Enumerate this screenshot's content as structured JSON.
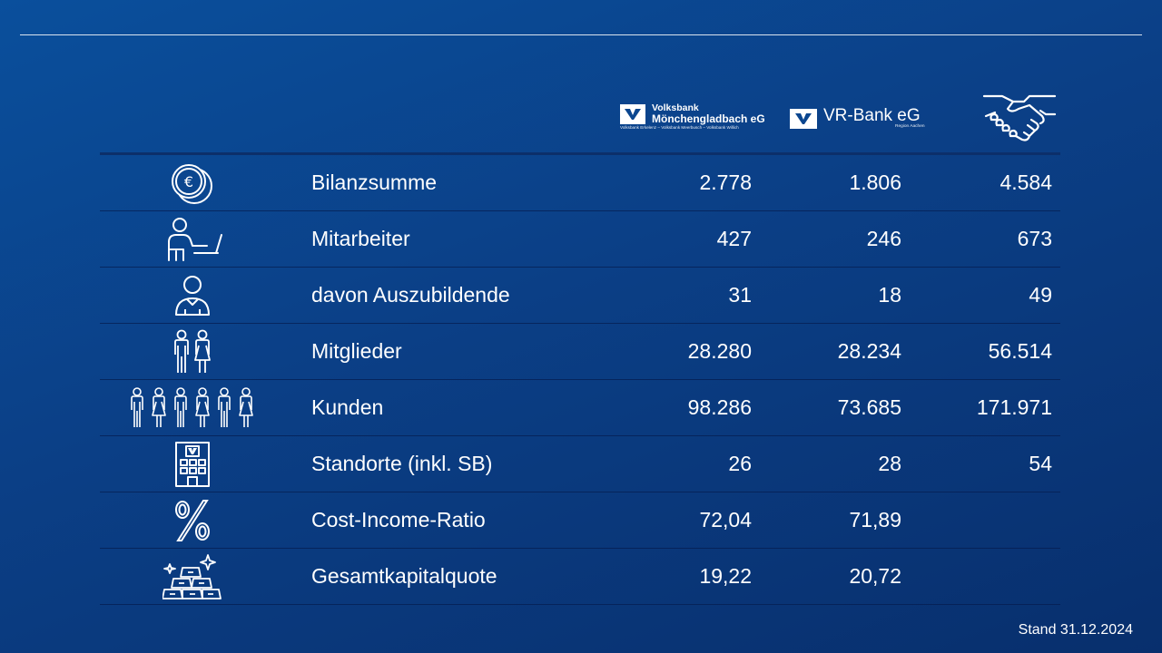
{
  "footer": {
    "stand": "Stand 31.12.2024"
  },
  "logos": {
    "volksbank": {
      "line1": "Volksbank",
      "line2": "Mönchengladbach eG",
      "line3": "Volksbank Erkelenz – Volksbank Meerbusch – Volksbank Willich"
    },
    "vrbank": {
      "name": "VR-Bank eG",
      "sub": "Region Aachen"
    },
    "combined": {
      "icon": "handshake-icon"
    }
  },
  "rows": [
    {
      "icon": "euro-coins-icon",
      "label": "Bilanzsumme",
      "v1": "2.778",
      "v2": "1.806",
      "v3": "4.584"
    },
    {
      "icon": "employee-laptop-icon",
      "label": "Mitarbeiter",
      "v1": "427",
      "v2": "246",
      "v3": "673"
    },
    {
      "icon": "trainee-person-icon",
      "label": "davon Auszubildende",
      "v1": "31",
      "v2": "18",
      "v3": "49"
    },
    {
      "icon": "members-pair-icon",
      "label": "Mitglieder",
      "v1": "28.280",
      "v2": "28.234",
      "v3": "56.514"
    },
    {
      "icon": "customers-group-icon",
      "label": "Kunden",
      "v1": "98.286",
      "v2": "73.685",
      "v3": "171.971"
    },
    {
      "icon": "bank-building-icon",
      "label": "Standorte (inkl. SB)",
      "v1": "26",
      "v2": "28",
      "v3": "54"
    },
    {
      "icon": "percent-icon",
      "label": "Cost-Income-Ratio",
      "v1": "72,04",
      "v2": "71,89",
      "v3": ""
    },
    {
      "icon": "gold-bars-icon",
      "label": "Gesamtkapitalquote",
      "v1": "19,22",
      "v2": "20,72",
      "v3": ""
    }
  ]
}
